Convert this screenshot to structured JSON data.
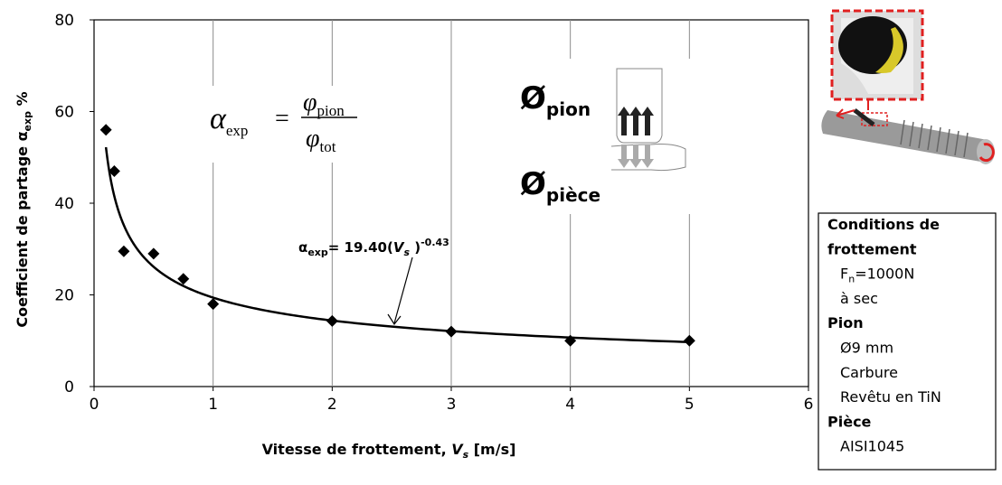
{
  "chart_data": {
    "type": "scatter",
    "x": [
      0.1,
      0.17,
      0.25,
      0.5,
      0.75,
      1,
      2,
      3,
      4,
      5
    ],
    "values": [
      56,
      47,
      29.5,
      29,
      23.5,
      18,
      14.3,
      12,
      10,
      10
    ],
    "color": "#000000",
    "xlim": [
      0,
      6
    ],
    "xticks": [
      0,
      1,
      2,
      3,
      4,
      5,
      6
    ],
    "ylim": [
      0,
      80
    ],
    "yticks": [
      0,
      20,
      40,
      60,
      80
    ],
    "grid": "x",
    "xlabel": {
      "text": "Vitesse de frottement, ",
      "variable": "V",
      "subscript": "s",
      "unit": " [m/s]"
    },
    "ylabel": {
      "text": "Coefficient de partage  α",
      "subscript": "exp",
      "unit": " %"
    },
    "fit": {
      "symbol": "α",
      "subscript": "exp",
      "equals": "= ",
      "coefficient": {
        "value": 19.4,
        "label": "19.40"
      },
      "open": "(",
      "variable": "V",
      "variable_subscript": "s",
      "close": " )",
      "exponent": -0.43
    },
    "formula": {
      "alpha": "α",
      "alpha_subscript": "exp",
      "equals": "=",
      "numerator": "φ",
      "numerator_subscript": "pion",
      "denominator": "φ",
      "denominator_subscript": "tot"
    },
    "flux": [
      {
        "symbol": "Ø",
        "subscript": "pion"
      },
      {
        "symbol": "Ø",
        "subscript": "pièce"
      }
    ]
  },
  "conditions": [
    {
      "text": "Conditions de",
      "bold": true
    },
    {
      "text": "frottement",
      "bold": true
    },
    {
      "text": "F",
      "sub": "n",
      "after": "=1000N",
      "bold": false
    },
    {
      "text": "à sec",
      "bold": false
    },
    {
      "text": "Pion",
      "bold": true
    },
    {
      "text": "Ø9 mm",
      "bold": false
    },
    {
      "text": "Carbure",
      "bold": false
    },
    {
      "text": "Revêtu en TiN",
      "bold": false
    },
    {
      "text": "Pièce",
      "bold": true
    },
    {
      "text": "AISI1045",
      "bold": false
    }
  ]
}
